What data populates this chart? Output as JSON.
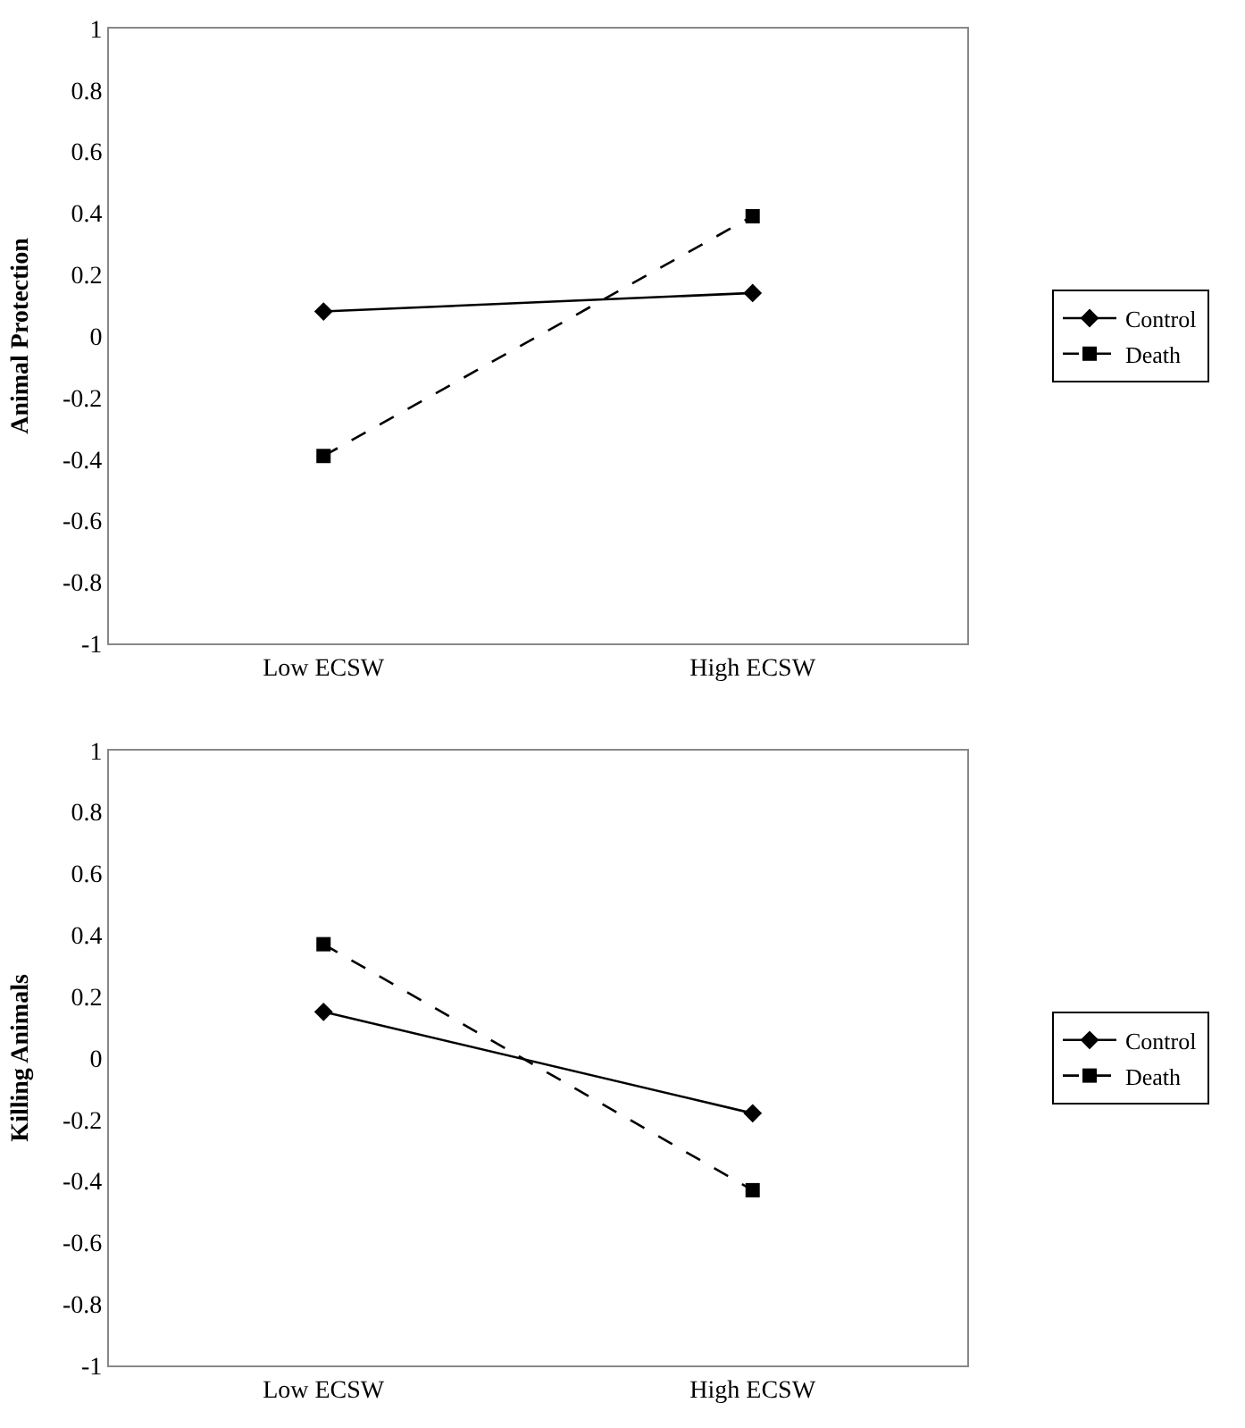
{
  "chart_data": [
    {
      "type": "line",
      "ylabel": "Animal Protection",
      "categories": [
        "Low ECSW",
        "High ECSW"
      ],
      "ylim": [
        -1,
        1
      ],
      "yticks": [
        -1,
        -0.8,
        -0.6,
        -0.4,
        -0.2,
        0,
        0.2,
        0.4,
        0.6,
        0.8,
        1
      ],
      "legend": "right",
      "series": [
        {
          "name": "Control",
          "color": "#000000",
          "marker": "diamond",
          "line_style": "solid",
          "values": [
            0.08,
            0.14
          ]
        },
        {
          "name": "Death",
          "color": "#000000",
          "marker": "square",
          "line_style": "dashed",
          "values": [
            -0.39,
            0.39
          ]
        }
      ]
    },
    {
      "type": "line",
      "ylabel": "Killing Animals",
      "categories": [
        "Low ECSW",
        "High ECSW"
      ],
      "ylim": [
        -1,
        1
      ],
      "yticks": [
        -1,
        -0.8,
        -0.6,
        -0.4,
        -0.2,
        0,
        0.2,
        0.4,
        0.6,
        0.8,
        1
      ],
      "legend": "right",
      "series": [
        {
          "name": "Control",
          "color": "#000000",
          "marker": "diamond",
          "line_style": "solid",
          "values": [
            0.15,
            -0.18
          ]
        },
        {
          "name": "Death",
          "color": "#000000",
          "marker": "square",
          "line_style": "dashed",
          "values": [
            0.37,
            -0.43
          ]
        }
      ]
    }
  ]
}
